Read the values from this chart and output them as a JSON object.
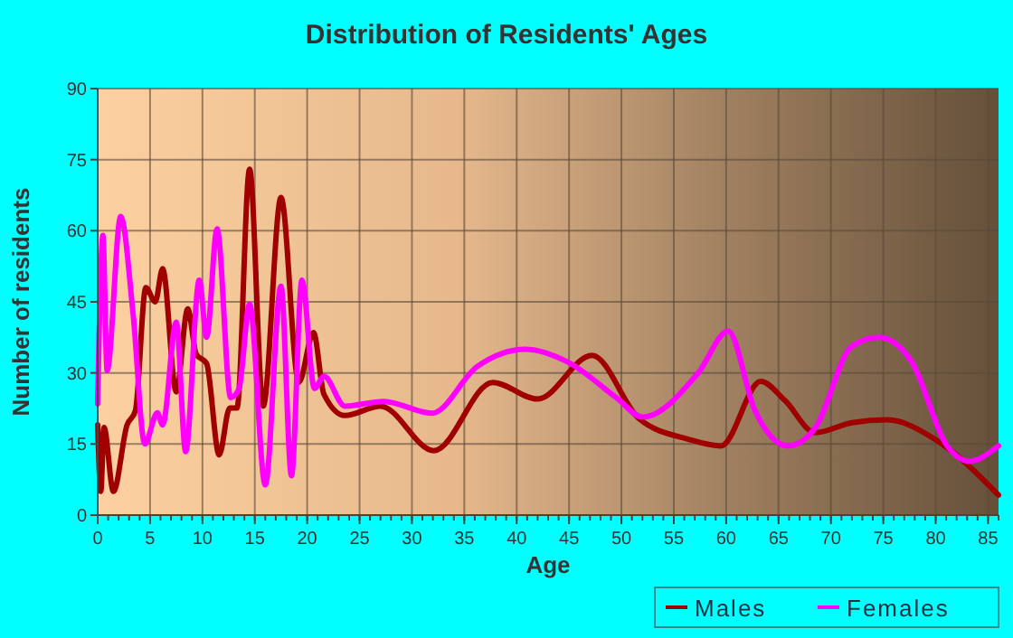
{
  "chart_data": {
    "type": "line",
    "title": "Distribution of Residents' Ages",
    "xlabel": "Age",
    "ylabel": "Number of residents",
    "xlim": [
      0,
      86
    ],
    "xticks": [
      0,
      5,
      10,
      15,
      20,
      25,
      30,
      35,
      40,
      45,
      50,
      55,
      60,
      65,
      70,
      75,
      80,
      85
    ],
    "ylim": [
      0,
      90
    ],
    "yticks": [
      0,
      15,
      30,
      45,
      60,
      75,
      90
    ],
    "grid": true,
    "legend": "bottom right",
    "line_style": "solid",
    "marker": "none",
    "series": [
      {
        "name": "Males",
        "color": "#a00000",
        "x": [
          0,
          0.3,
          0.6,
          1.5,
          2.8,
          3.6,
          4.6,
          5.5,
          6.2,
          7.5,
          8.6,
          9.4,
          10.4,
          11.6,
          12.6,
          13.3,
          14.5,
          15.8,
          17.5,
          19.2,
          20.6,
          21.6,
          23.6,
          27,
          32.1,
          37.7,
          42,
          47.2,
          51.7,
          56.4,
          59.5,
          63.3,
          65.6,
          68.5,
          72,
          75.4,
          80,
          86
        ],
        "values": [
          19,
          5,
          18.5,
          5,
          19,
          22,
          48,
          45,
          52,
          26,
          43.5,
          34,
          32,
          12.7,
          22.6,
          22.6,
          73,
          23,
          67,
          28,
          38.5,
          25.5,
          21,
          23,
          13.6,
          28,
          24.5,
          33.7,
          20.3,
          16,
          14.6,
          28.2,
          24.2,
          17.4,
          19.5,
          20.1,
          15.9,
          4.2
        ]
      },
      {
        "name": "Females",
        "color": "#ff00ff",
        "x": [
          0,
          0.5,
          0.9,
          2.2,
          3.4,
          4.5,
          5.7,
          6.2,
          7.5,
          8.4,
          9.7,
          10.4,
          11.4,
          12.7,
          13.5,
          14.5,
          16,
          17.5,
          18.5,
          19.5,
          20.7,
          21.6,
          23.6,
          27.3,
          31.9,
          36.2,
          40.8,
          44.8,
          49.5,
          52,
          57.3,
          60.2,
          62.7,
          65.9,
          68.5,
          72,
          74.6,
          77.7,
          81.1,
          83.2,
          86
        ],
        "values": [
          23.5,
          59,
          30.5,
          63,
          42,
          15,
          21.6,
          19,
          40.7,
          13.4,
          49.6,
          37.5,
          60.4,
          24.8,
          26.7,
          44.5,
          6.4,
          48.3,
          8.3,
          49.6,
          26.7,
          29.3,
          23,
          24,
          21.5,
          31.3,
          35,
          32.4,
          24.8,
          20.7,
          29.9,
          38.8,
          22.3,
          14.6,
          18.4,
          35.6,
          37.5,
          32.4,
          14.6,
          11.4,
          14.6
        ]
      }
    ]
  }
}
